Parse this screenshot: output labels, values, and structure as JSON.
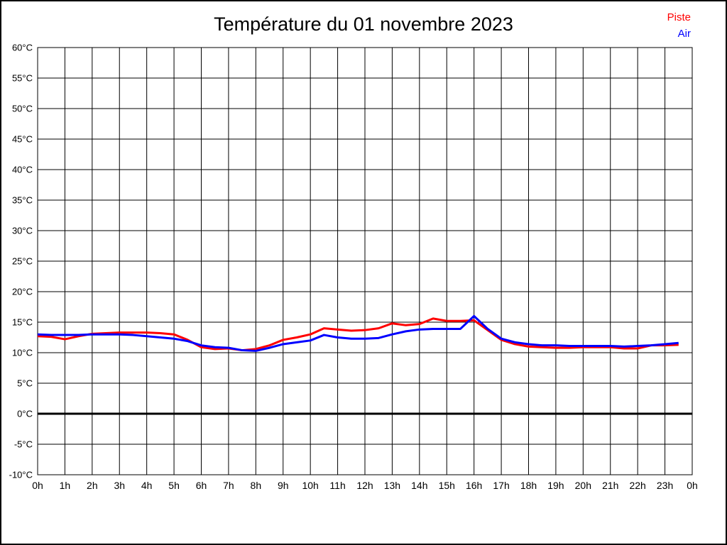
{
  "chart_data": {
    "type": "line",
    "title": "Température du 01 novembre 2023",
    "xlabel": "",
    "ylabel": "",
    "xlim": [
      0,
      24
    ],
    "ylim": [
      -10,
      60
    ],
    "ytick_step": 5,
    "xtick_step_hours": 1,
    "grid": true,
    "zero_line_bold": true,
    "legend_position": "top-right",
    "axis_color": "#000000",
    "background_color": "#ffffff",
    "ytick_labels": [
      "60°C",
      "55°C",
      "50°C",
      "45°C",
      "40°C",
      "35°C",
      "30°C",
      "25°C",
      "20°C",
      "15°C",
      "10°C",
      "5°C",
      "0°C",
      "-5°C",
      "-10°C"
    ],
    "ytick_values": [
      60,
      55,
      50,
      45,
      40,
      35,
      30,
      25,
      20,
      15,
      10,
      5,
      0,
      -5,
      -10
    ],
    "xtick_labels": [
      "0h",
      "1h",
      "2h",
      "3h",
      "4h",
      "5h",
      "6h",
      "7h",
      "8h",
      "9h",
      "10h",
      "11h",
      "12h",
      "13h",
      "14h",
      "15h",
      "16h",
      "17h",
      "18h",
      "19h",
      "20h",
      "21h",
      "22h",
      "23h",
      "0h"
    ],
    "xtick_values": [
      0,
      1,
      2,
      3,
      4,
      5,
      6,
      7,
      8,
      9,
      10,
      11,
      12,
      13,
      14,
      15,
      16,
      17,
      18,
      19,
      20,
      21,
      22,
      23,
      24
    ],
    "x_hours": [
      0,
      0.5,
      1,
      1.5,
      2,
      2.5,
      3,
      3.5,
      4,
      4.5,
      5,
      5.5,
      6,
      6.5,
      7,
      7.5,
      8,
      8.5,
      9,
      9.5,
      10,
      10.5,
      11,
      11.5,
      12,
      12.5,
      13,
      13.5,
      14,
      14.5,
      15,
      15.5,
      16,
      16.5,
      17,
      17.5,
      18,
      18.5,
      19,
      19.5,
      20,
      20.5,
      21,
      21.5,
      22,
      22.5,
      23,
      23.5
    ],
    "series": [
      {
        "name": "Piste",
        "color": "#ff0000",
        "values": [
          12.7,
          12.6,
          12.2,
          12.7,
          13.1,
          13.2,
          13.3,
          13.3,
          13.3,
          13.2,
          13.0,
          12.1,
          10.9,
          10.6,
          10.7,
          10.4,
          10.6,
          11.2,
          12.1,
          12.5,
          13.0,
          14.0,
          13.8,
          13.6,
          13.7,
          14.0,
          14.8,
          14.5,
          14.7,
          15.6,
          15.2,
          15.2,
          15.3,
          13.7,
          12.1,
          11.4,
          11.0,
          10.9,
          10.8,
          10.8,
          10.9,
          10.9,
          10.9,
          10.7,
          10.7,
          11.2,
          11.2,
          11.3
        ]
      },
      {
        "name": "Air",
        "color": "#0000ff",
        "values": [
          13.0,
          12.9,
          12.9,
          12.9,
          13.0,
          13.0,
          13.0,
          12.9,
          12.7,
          12.5,
          12.3,
          11.9,
          11.2,
          10.9,
          10.8,
          10.4,
          10.3,
          10.8,
          11.4,
          11.7,
          12.0,
          12.9,
          12.5,
          12.3,
          12.3,
          12.4,
          13.0,
          13.5,
          13.8,
          13.9,
          13.9,
          13.9,
          16.0,
          13.9,
          12.3,
          11.7,
          11.4,
          11.2,
          11.2,
          11.1,
          11.1,
          11.1,
          11.1,
          11.0,
          11.1,
          11.2,
          11.4,
          11.6
        ]
      }
    ]
  }
}
